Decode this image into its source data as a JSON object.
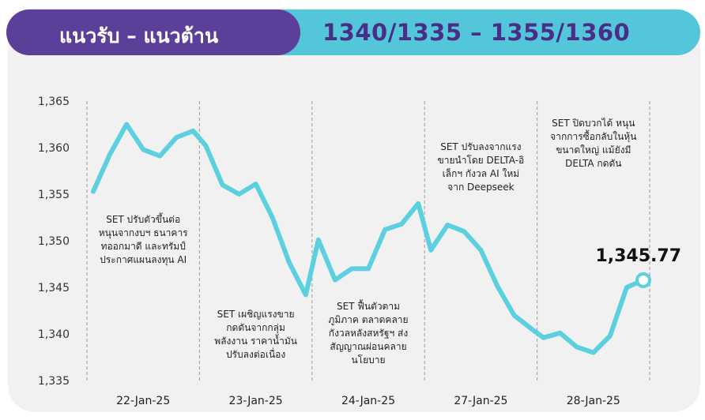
{
  "header": {
    "title": "แนวรับ – แนวต้าน",
    "levels": "1340/1335 – 1355/1360"
  },
  "colors": {
    "purple": "#5c3f98",
    "cyan": "#54c6d9",
    "line": "#5cd0df",
    "level_text": "#4a2d86"
  },
  "chart_data": {
    "type": "line",
    "title": "",
    "xlabel": "",
    "ylabel": "",
    "ylim": [
      1335,
      1365
    ],
    "yticks": [
      1335,
      1340,
      1345,
      1350,
      1355,
      1360,
      1365
    ],
    "ytick_labels": [
      "1,335",
      "1,340",
      "1,345",
      "1,350",
      "1,355",
      "1,360",
      "1,365"
    ],
    "days": [
      "22-Jan-25",
      "23-Jan-25",
      "24-Jan-25",
      "27-Jan-25",
      "28-Jan-25"
    ],
    "grid": "vertical dashed day separators",
    "series": [
      {
        "values": [
          [
            1355.3,
            1359.3,
            1362.5,
            1359.8,
            1359.1,
            1361.1,
            1361.8
          ],
          [
            1360.2,
            1356.0,
            1355.0,
            1356.1,
            1352.5,
            1347.7,
            1344.2
          ],
          [
            1350.1,
            1345.8,
            1347.0,
            1347.0,
            1351.2,
            1351.8,
            1354.0
          ],
          [
            1349.0,
            1351.7,
            1351.0,
            1349.0,
            1345.1,
            1342.0,
            1340.6
          ],
          [
            1339.6,
            1340.1,
            1338.6,
            1338.0,
            1339.8,
            1345.0,
            1345.77
          ]
        ]
      }
    ],
    "last_value_label": "1,345.77",
    "annotations": [
      "SET ปรับตัวขึ้นต่อ\nหนุนจากงบฯ ธนาคาร\nทออกมาดี และทรัมป์\nประกาศแผนลงทุน AI",
      "SET เผชิญแรงขาย\nกดดันจากกลุ่ม\nพลังงาน ราคาน้ำมัน\nปรับลงต่อเนื่อง",
      "SET ฟื้นตัวตาม\nภูมิภาค ตลาดคลาย\nกังวลหลังสหรัฐฯ ส่ง\nสัญญาณผ่อนคลาย\nนโยบาย",
      "SET ปรับลงจากแรง\nขายนำโดย DELTA-อิ\nเล็กฯ กังวล AI ใหม่\nจาก Deepseek",
      "SET ปิดบวกได้ หนุน\nจากการซื้อกลับในหุ้น\nขนาดใหญ่ แม้ยังมี\nDELTA กดดัน"
    ]
  }
}
